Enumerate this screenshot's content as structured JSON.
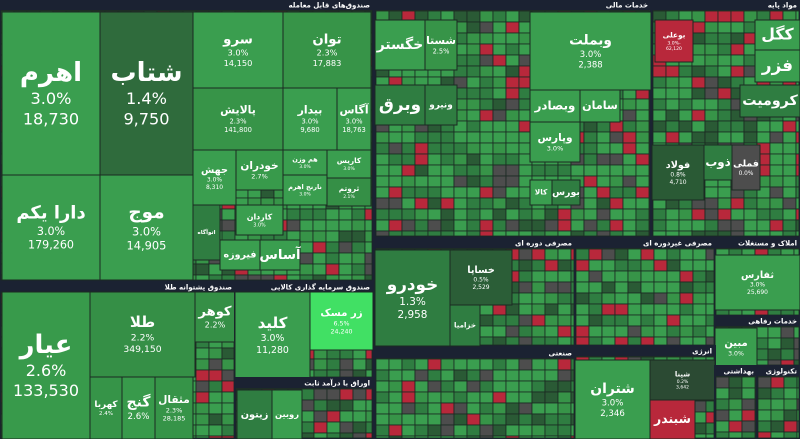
{
  "groups": [
    {
      "title": "صندوق‌های قابل معامله",
      "tiles": [
        {
          "name": "اهرم",
          "change": "3.0%",
          "price": "18,730",
          "color": "#3a9e4f"
        },
        {
          "name": "شتاب",
          "change": "1.4%",
          "price": "9,750",
          "color": "#2f6b3c"
        },
        {
          "name": "دارا یکم",
          "change": "3.0%",
          "price": "179,260",
          "color": "#3a9e4f"
        },
        {
          "name": "موج",
          "change": "3.0%",
          "price": "14,905",
          "color": "#3a9e4f"
        },
        {
          "name": "سرو",
          "change": "3.0%",
          "price": "14,150",
          "color": "#3a9e4f"
        },
        {
          "name": "توان",
          "change": "2.3%",
          "price": "17,883",
          "color": "#379448"
        },
        {
          "name": "پالایش",
          "change": "2.3%",
          "price": "141,800",
          "color": "#379448"
        },
        {
          "name": "بیدار",
          "change": "3.0%",
          "price": "9,680",
          "color": "#3a9e4f"
        },
        {
          "name": "آگاس",
          "change": "3.0%",
          "price": "18,763",
          "color": "#3a9e4f"
        },
        {
          "name": "جهش",
          "change": "3.0%",
          "price": "8,310",
          "color": "#3a9e4f"
        },
        {
          "name": "خودران",
          "change": "2.7%",
          "color": "#389a4b"
        },
        {
          "name": "هم وزن",
          "change": "3.0%",
          "color": "#3a9e4f"
        },
        {
          "name": "کاریس",
          "change": "3.0%",
          "color": "#3a9e4f"
        },
        {
          "name": "نارنج اهرم",
          "change": "3.0%",
          "color": "#3a9e4f"
        },
        {
          "name": "ثروتم",
          "change": "2.1%",
          "color": "#358f46"
        },
        {
          "name": "کاردان",
          "change": "3.0%",
          "color": "#3a9e4f"
        },
        {
          "name": "اتوآگاه",
          "color": "#2f7d41"
        },
        {
          "name": "فیروزه",
          "color": "#3a9e4f"
        },
        {
          "name": "آساس",
          "color": "#3a9e4f"
        }
      ]
    },
    {
      "title": "صندوق پشتوانه طلا",
      "tiles": [
        {
          "name": "عیار",
          "change": "2.6%",
          "price": "133,530",
          "color": "#389a4b"
        },
        {
          "name": "طلا",
          "change": "2.2%",
          "price": "349,150",
          "color": "#358f46"
        },
        {
          "name": "کوهر",
          "change": "2.2%",
          "color": "#358f46"
        },
        {
          "name": "کهربا",
          "change": "2.4%",
          "color": "#369448"
        },
        {
          "name": "گنج",
          "change": "2.6%",
          "color": "#389a4b"
        },
        {
          "name": "مثقال",
          "change": "2.3%",
          "price": "28,185",
          "color": "#369448"
        }
      ]
    },
    {
      "title": "صندوق سرمایه گذاری کالایی",
      "tiles": [
        {
          "name": "کلید",
          "change": "3.0%",
          "price": "11,280",
          "color": "#3a9e4f"
        },
        {
          "name": "زر مسک",
          "change": "6.5%",
          "price": "24,240",
          "color": "#41e064"
        }
      ]
    },
    {
      "title": "اوراق با درآمد ثابت",
      "tiles": [
        {
          "name": "زیتون",
          "color": "#2f7d41"
        },
        {
          "name": "روبین",
          "color": "#3a9e4f"
        }
      ]
    },
    {
      "title": "خدمات مالی",
      "tiles": [
        {
          "name": "خگستر",
          "color": "#3a9e4f"
        },
        {
          "name": "شستا",
          "change": "2.5%",
          "color": "#379448"
        },
        {
          "name": "وبملت",
          "change": "3.0%",
          "price": "2,388",
          "color": "#3a9e4f"
        },
        {
          "name": "وبرق",
          "color": "#2f7d41"
        },
        {
          "name": "ونیرو",
          "color": "#2f7d41"
        },
        {
          "name": "وبصادر",
          "color": "#3a9e4f"
        },
        {
          "name": "سامان",
          "color": "#3a9e4f"
        },
        {
          "name": "وپارس",
          "change": "3.0%",
          "color": "#3a9e4f"
        },
        {
          "name": "کالا",
          "color": "#3a9e4f"
        },
        {
          "name": "بورس",
          "color": "#2f7d41"
        }
      ]
    },
    {
      "title": "مواد پایه",
      "tiles": [
        {
          "name": "بوعلی",
          "change": "-3.0%",
          "price": "62,120",
          "color": "#b8283b"
        },
        {
          "name": "کگل",
          "color": "#3a9e4f"
        },
        {
          "name": "فزر",
          "color": "#3a9e4f"
        },
        {
          "name": "کرومیت",
          "color": "#2f7d41"
        },
        {
          "name": "فولاد",
          "change": "0.8%",
          "price": "4,710",
          "color": "#2a5a35"
        },
        {
          "name": "ذوب",
          "color": "#2f7d41"
        },
        {
          "name": "فملی",
          "change": "0.0%",
          "color": "#4d4d4d"
        }
      ]
    },
    {
      "title": "مصرفی دوره ای",
      "tiles": [
        {
          "name": "خودرو",
          "change": "1.3%",
          "price": "2,958",
          "color": "#2f7d41"
        },
        {
          "name": "خساپا",
          "change": "0.5%",
          "price": "2,529",
          "color": "#2b5e37"
        },
        {
          "name": "خزامیا",
          "color": "#2f7d41"
        }
      ]
    },
    {
      "title": "مصرفی غیردوره ای",
      "tiles": []
    },
    {
      "title": "املاک و مستغلات",
      "tiles": [
        {
          "name": "ثفارس",
          "change": "3.0%",
          "price": "25,690",
          "color": "#3a9e4f"
        }
      ]
    },
    {
      "title": "خدمات رفاهی",
      "tiles": [
        {
          "name": "مبین",
          "change": "3.0%",
          "color": "#3a9e4f"
        }
      ]
    },
    {
      "title": "صنعتی",
      "tiles": []
    },
    {
      "title": "انرژی",
      "tiles": [
        {
          "name": "شتران",
          "change": "3.0%",
          "price": "2,346",
          "color": "#3a9e4f"
        },
        {
          "name": "شپنا",
          "change": "0.2%",
          "price": "3,642",
          "color": "#2b4a33"
        },
        {
          "name": "شبندر",
          "color": "#b8283b"
        }
      ]
    },
    {
      "title": "بهداشتی",
      "tiles": []
    },
    {
      "title": "تکنولوژی",
      "tiles": []
    }
  ]
}
